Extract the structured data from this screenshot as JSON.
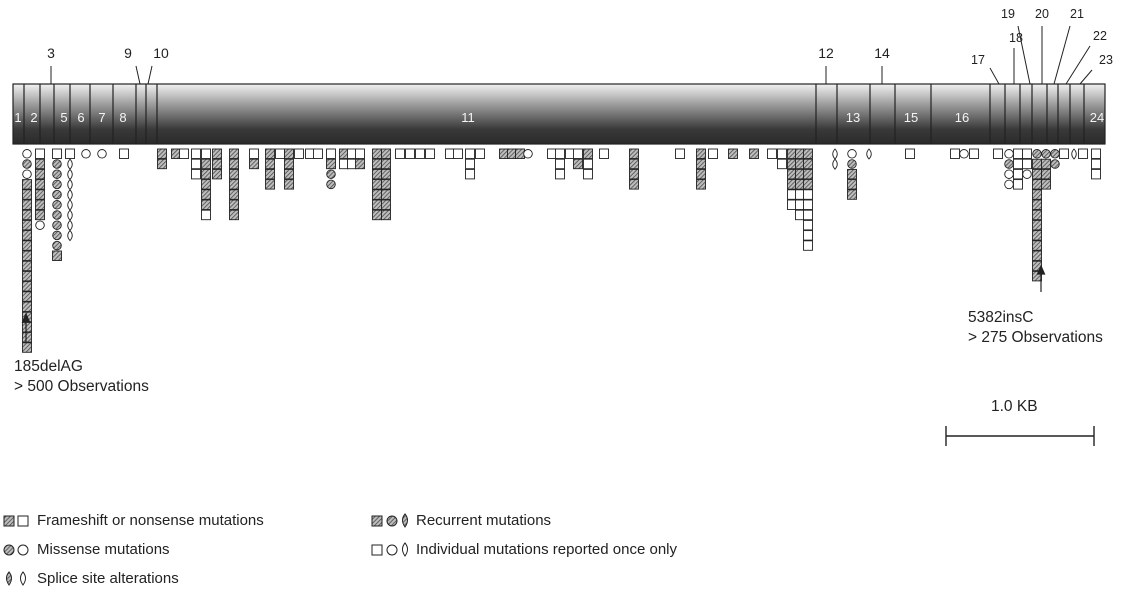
{
  "exons": {
    "top_labels": [
      "3",
      "9",
      "10",
      "12",
      "14",
      "17",
      "18",
      "19",
      "20",
      "21",
      "22",
      "23"
    ],
    "inside_labels": [
      "1",
      "2",
      "5",
      "6",
      "7",
      "8",
      "11",
      "13",
      "15",
      "16",
      "24"
    ]
  },
  "annotations": {
    "left": {
      "name": "185delAG",
      "count": "> 500 Observations"
    },
    "right": {
      "name": "5382insC",
      "count": "> 275 Observations"
    }
  },
  "scale": {
    "label": "1.0 KB"
  },
  "legend": {
    "frameshift": "Frameshift or nonsense mutations",
    "missense": "Missense mutations",
    "splice": "Splice site alterations",
    "recurrent": "Recurrent mutations",
    "individual": "Individual mutations reported once only"
  },
  "colors": {
    "ink": "#222222",
    "hatch": "#6f6f6f",
    "bar_dark": "#2e2e2e",
    "bar_light": "#d8d8d8"
  }
}
